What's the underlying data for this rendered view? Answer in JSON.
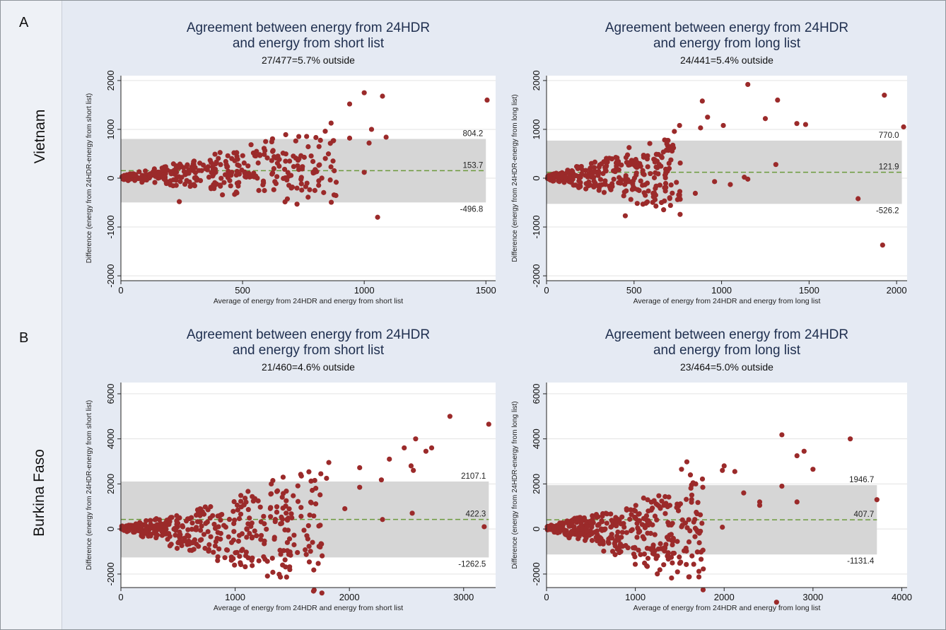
{
  "figure": {
    "panel_labels": [
      "A",
      "B"
    ],
    "row_labels": [
      "Vietnam",
      "Burkina Faso"
    ]
  },
  "colors": {
    "points": "#9b2a2a",
    "band": "#d6d6d6",
    "mean_line": "#6d9a3e",
    "title": "#1f2f4f",
    "background": "#e5eaf3"
  },
  "chart_data": [
    {
      "type": "scatter",
      "country": "Vietnam",
      "title": "Agreement between energy from 24HDR",
      "title_line2": "and energy from short list",
      "subtitle": "27/477=5.7% outside",
      "xlabel": "Average of energy from 24HDR and energy from short list",
      "ylabel": "Difference (energy from 24HDR-energy from short list)",
      "xlim": [
        0,
        1540
      ],
      "ylim": [
        -2100,
        2100
      ],
      "xticks": [
        0,
        500,
        1000,
        1500
      ],
      "yticks": [
        -2000,
        -1000,
        0,
        1000,
        2000
      ],
      "limits": {
        "upper": 804.2,
        "mean": 153.7,
        "lower": -496.8,
        "x_end": 1500
      },
      "limit_labels": [
        "804.2",
        "153.7",
        "-496.8"
      ],
      "outer_points": [
        [
          940,
          1520
        ],
        [
          1000,
          1750
        ],
        [
          1075,
          1680
        ],
        [
          1505,
          1600
        ],
        [
          1055,
          -800
        ],
        [
          1090,
          840
        ],
        [
          1030,
          1000
        ],
        [
          1000,
          120
        ],
        [
          240,
          -480
        ],
        [
          690,
          40
        ],
        [
          740,
          460
        ],
        [
          1020,
          720
        ],
        [
          940,
          820
        ]
      ],
      "fan": {
        "n": 360,
        "maxX": 880,
        "upperSlope": 1.3,
        "lowerSlope": -0.85,
        "seed": 11
      }
    },
    {
      "type": "scatter",
      "country": "Vietnam",
      "title": "Agreement between energy from 24HDR",
      "title_line2": "and energy from long list",
      "subtitle": "24/441=5.4% outside",
      "xlabel": "Average of energy from 24HDR and energy from long list",
      "ylabel": "Difference (energy from 24HDR-energy from long list)",
      "xlim": [
        0,
        2060
      ],
      "ylim": [
        -2100,
        2100
      ],
      "xticks": [
        0,
        500,
        1000,
        1500,
        2000
      ],
      "yticks": [
        -2000,
        -1000,
        0,
        1000,
        2000
      ],
      "limits": {
        "upper": 770.0,
        "mean": 121.9,
        "lower": -526.2,
        "x_end": 2030
      },
      "limit_labels": [
        "770.0",
        "121.9",
        "-526.2"
      ],
      "outer_points": [
        [
          1150,
          1920
        ],
        [
          1320,
          1600
        ],
        [
          1930,
          1700
        ],
        [
          2040,
          1050
        ],
        [
          1250,
          1220
        ],
        [
          1430,
          1120
        ],
        [
          1480,
          1100
        ],
        [
          1010,
          1080
        ],
        [
          890,
          1580
        ],
        [
          920,
          1250
        ],
        [
          880,
          1030
        ],
        [
          1310,
          280
        ],
        [
          1130,
          20
        ],
        [
          1150,
          -20
        ],
        [
          1050,
          -130
        ],
        [
          960,
          -70
        ],
        [
          850,
          -310
        ],
        [
          1780,
          -420
        ],
        [
          1920,
          -1370
        ],
        [
          450,
          -770
        ],
        [
          620,
          -440
        ],
        [
          760,
          1080
        ]
      ],
      "fan": {
        "n": 330,
        "maxX": 760,
        "upperSlope": 1.3,
        "lowerSlope": -0.95,
        "seed": 23
      }
    },
    {
      "type": "scatter",
      "country": "Burkina Faso",
      "title": "Agreement between energy from 24HDR",
      "title_line2": "and energy from short list",
      "subtitle": "21/460=4.6% outside",
      "xlabel": "Average of energy from 24HDR and energy from short list",
      "ylabel": "Difference (energy from 24HDR-energy from short list)",
      "xlim": [
        0,
        3280
      ],
      "ylim": [
        -2600,
        6500
      ],
      "xticks": [
        0,
        1000,
        2000,
        3000
      ],
      "yticks": [
        -2000,
        0,
        2000,
        4000,
        6000
      ],
      "limits": {
        "upper": 2107.1,
        "mean": 422.3,
        "lower": -1262.5,
        "x_end": 3220
      },
      "limit_labels": [
        "2107.1",
        "422.3",
        "-1262.5"
      ],
      "outer_points": [
        [
          2880,
          5000
        ],
        [
          3220,
          4650
        ],
        [
          2580,
          4000
        ],
        [
          2480,
          3600
        ],
        [
          2720,
          3600
        ],
        [
          2670,
          3450
        ],
        [
          2350,
          3100
        ],
        [
          2540,
          2800
        ],
        [
          2560,
          2600
        ],
        [
          2090,
          2720
        ],
        [
          1820,
          2950
        ],
        [
          2280,
          2180
        ],
        [
          2090,
          1850
        ],
        [
          1960,
          900
        ],
        [
          1580,
          2350
        ],
        [
          1420,
          2300
        ],
        [
          1330,
          2150
        ],
        [
          3180,
          100
        ],
        [
          1050,
          -1580
        ],
        [
          2550,
          700
        ],
        [
          2290,
          420
        ],
        [
          1750,
          2450
        ],
        [
          1800,
          2250
        ]
      ],
      "fan": {
        "n": 400,
        "maxX": 1760,
        "upperSlope": 1.55,
        "lowerSlope": -1.75,
        "seed": 37
      }
    },
    {
      "type": "scatter",
      "country": "Burkina Faso",
      "title": "Agreement between energy from 24HDR",
      "title_line2": "and energy from long list",
      "subtitle": "23/464=5.0% outside",
      "xlabel": "Average of energy from 24HDR and energy from long list",
      "ylabel": "Difference (energy from 24HDR-energy from long list)",
      "xlim": [
        0,
        4060
      ],
      "ylim": [
        -2600,
        6500
      ],
      "xticks": [
        0,
        1000,
        2000,
        3000,
        4000
      ],
      "yticks": [
        -2000,
        0,
        2000,
        4000,
        6000
      ],
      "limits": {
        "upper": 1946.7,
        "mean": 407.7,
        "lower": -1131.4,
        "x_end": 3720
      },
      "limit_labels": [
        "1946.7",
        "407.7",
        "-1131.4"
      ],
      "outer_points": [
        [
          2650,
          4180
        ],
        [
          3420,
          4000
        ],
        [
          2900,
          3450
        ],
        [
          2820,
          3250
        ],
        [
          3000,
          2650
        ],
        [
          2650,
          1900
        ],
        [
          3720,
          1300
        ],
        [
          2400,
          1050
        ],
        [
          2820,
          1200
        ],
        [
          2000,
          2800
        ],
        [
          1980,
          2600
        ],
        [
          2120,
          2550
        ],
        [
          2220,
          1600
        ],
        [
          1580,
          2980
        ],
        [
          1620,
          2400
        ],
        [
          1520,
          2650
        ],
        [
          1680,
          2000
        ],
        [
          1650,
          2050
        ],
        [
          1980,
          80
        ],
        [
          1690,
          -40
        ],
        [
          2400,
          1200
        ],
        [
          2590,
          -3250
        ],
        [
          1500,
          -1520
        ],
        [
          1250,
          -1200
        ],
        [
          1320,
          -850
        ]
      ],
      "fan": {
        "n": 400,
        "maxX": 1760,
        "upperSlope": 1.45,
        "lowerSlope": -1.6,
        "seed": 53
      }
    }
  ]
}
